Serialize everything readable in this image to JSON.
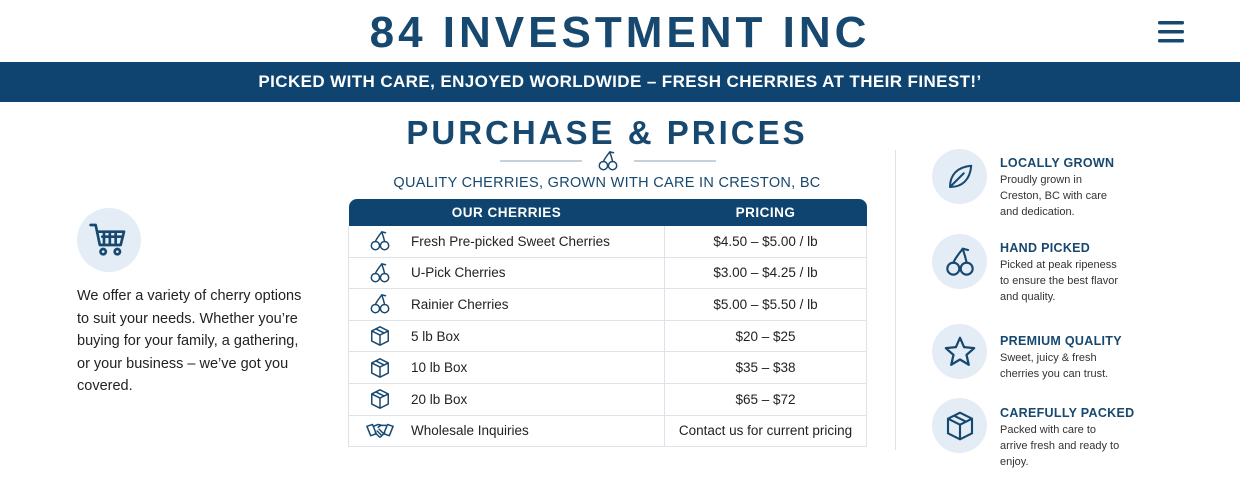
{
  "header": {
    "title": "84 INVESTMENT INC"
  },
  "banner": "PICKED WITH CARE, ENJOYED WORLDWIDE – FRESH CHERRIES AT THEIR FINEST!’",
  "intro": {
    "text": "We offer a variety of cherry options to suit your needs. Whether you’re buying for your family, a gathering, or your business – we’ve got you covered."
  },
  "pricing": {
    "title": "PURCHASE & PRICES",
    "subtitle": "QUALITY CHERRIES, GROWN WITH CARE IN CRESTON, BC",
    "table": {
      "headers": [
        "OUR CHERRIES",
        "PRICING"
      ],
      "rows": [
        [
          "Fresh Pre-picked Sweet Cherries",
          "$4.50 – $5.00 / lb"
        ],
        [
          "U-Pick Cherries",
          "$3.00 – $4.25 / lb"
        ],
        [
          "Rainier Cherries",
          "$5.00 – $5.50 / lb"
        ],
        [
          "5 lb Box",
          "$20 – $25"
        ],
        [
          "10 lb Box",
          "$35 – $38"
        ],
        [
          "20 lb Box",
          "$65 – $72"
        ],
        [
          "Wholesale Inquiries",
          "Contact us for current pricing"
        ]
      ]
    }
  },
  "features": [
    {
      "title": "LOCALLY GROWN",
      "text": "Proudly grown in Creston, BC with care and dedication."
    },
    {
      "title": "HAND PICKED",
      "text": "Picked at peak ripeness to ensure the best flavor and quality."
    },
    {
      "title": "PREMIUM QUALITY",
      "text": "Sweet, juicy & fresh cherries you can trust."
    },
    {
      "title": "CAREFULLY PACKED",
      "text": "Packed with care to arrive fresh and ready to enjoy."
    }
  ]
}
